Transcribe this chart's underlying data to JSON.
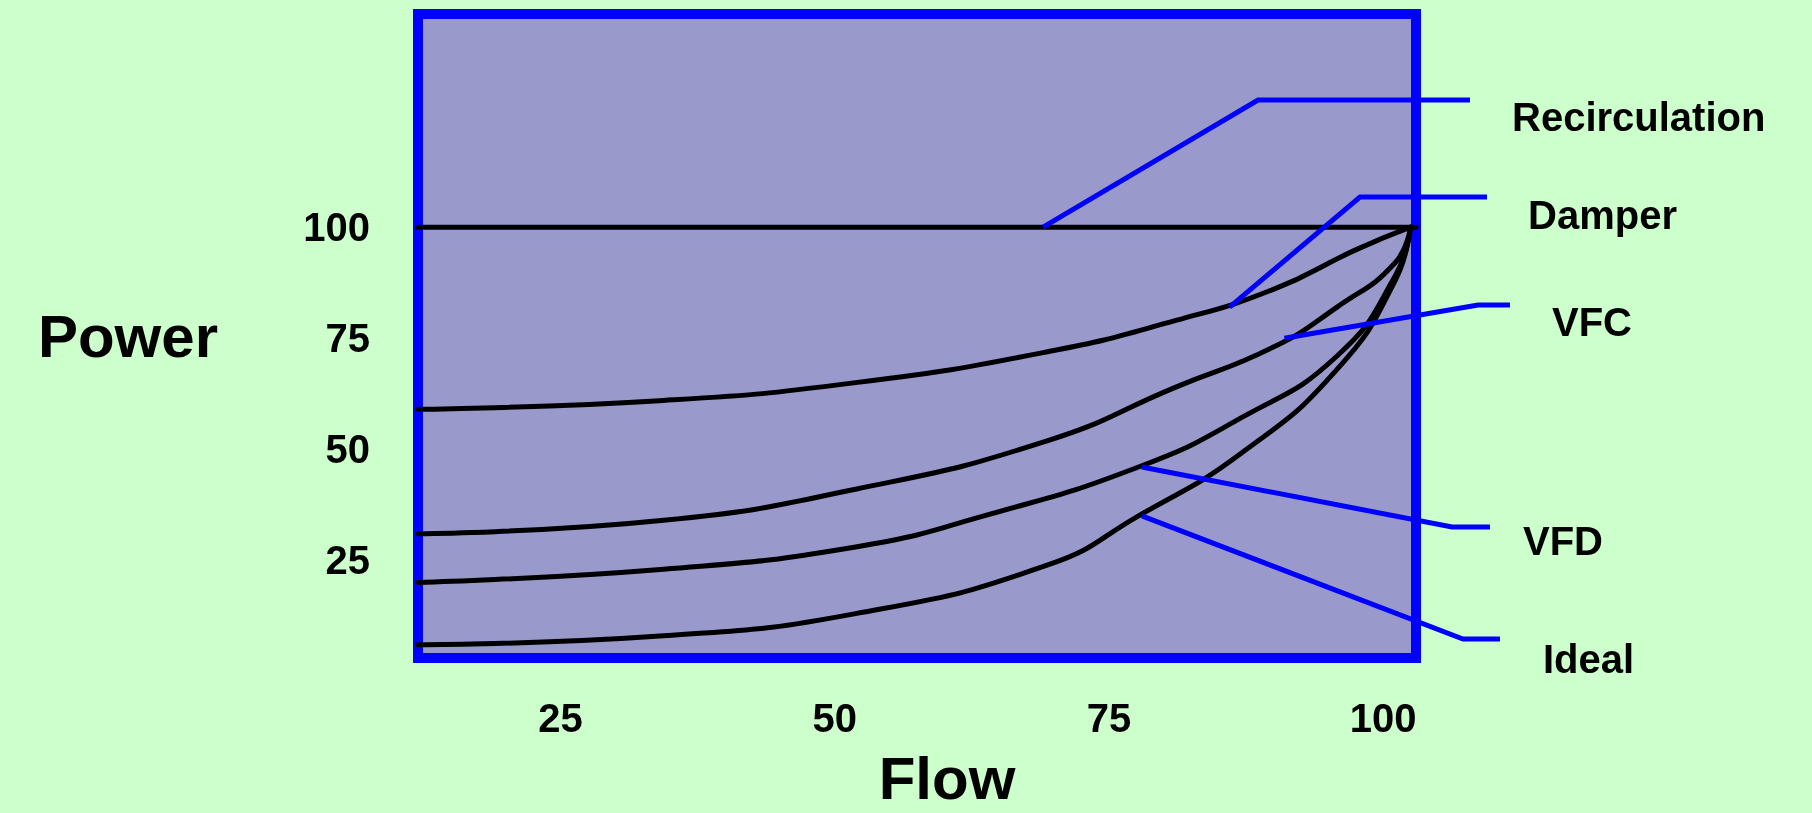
{
  "chart_data": {
    "type": "line",
    "xlabel": "Flow",
    "ylabel": "Power",
    "xlim": [
      12,
      103
    ],
    "ylim": [
      3,
      148
    ],
    "xticks": [
      25,
      50,
      75,
      100
    ],
    "yticks": [
      25,
      50,
      75,
      100
    ],
    "grid": false,
    "marker": "none",
    "line_style": "solid",
    "series": [
      {
        "color": "#000000",
        "x": [
          12,
          103
        ],
        "values": [
          100,
          100
        ]
      },
      {
        "color": "#000000",
        "x": [
          12,
          34.4,
          51.9,
          69.5,
          81.1,
          90.0,
          97.6,
          102.5
        ],
        "values": [
          59,
          61,
          65,
          72,
          79,
          86,
          95,
          100
        ]
      },
      {
        "color": "#000000",
        "x": [
          12,
          34.4,
          51.9,
          69.5,
          81.1,
          90.0,
          95.8,
          101.1,
          102.5
        ],
        "values": [
          31,
          34,
          41,
          52,
          64,
          73,
          82,
          92,
          100
        ]
      },
      {
        "color": "#000000",
        "x": [
          12,
          34.4,
          51.9,
          63.6,
          77.7,
          87.0,
          95.8,
          101.1,
          102.5
        ],
        "values": [
          20,
          23,
          28,
          35,
          46,
          57,
          71,
          89,
          100
        ]
      },
      {
        "color": "#000000",
        "x": [
          12,
          34.4,
          51.9,
          69.5,
          77.7,
          87.0,
          95.8,
          101.1,
          102.5
        ],
        "values": [
          6,
          8,
          13,
          24,
          35,
          49,
          68,
          88,
          100
        ]
      }
    ],
    "annotations": [
      {
        "text": "Recirculation",
        "x": 69,
        "y": 100
      },
      {
        "text": "Damper",
        "x": 86,
        "y": 82
      },
      {
        "text": "VFC",
        "x": 91,
        "y": 75
      },
      {
        "text": "VFD",
        "x": 78,
        "y": 46
      },
      {
        "text": "Ideal",
        "x": 78,
        "y": 35
      }
    ]
  }
}
